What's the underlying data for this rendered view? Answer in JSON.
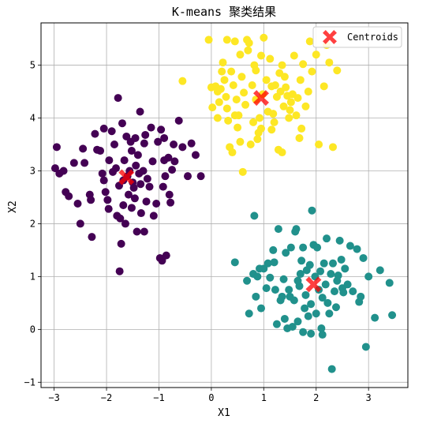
{
  "chart_data": {
    "type": "scatter",
    "title": "K-means 聚类结果",
    "xlabel": "X1",
    "ylabel": "X2",
    "xlim": [
      -3.25,
      3.75
    ],
    "ylim": [
      -1.1,
      5.8
    ],
    "xticks": [
      -3,
      -2,
      -1,
      0,
      1,
      2,
      3
    ],
    "yticks": [
      -1,
      0,
      1,
      2,
      3,
      4,
      5
    ],
    "grid": true,
    "legend": {
      "position": "top-right",
      "entries": [
        "Centroids"
      ]
    },
    "colors": {
      "cluster_0": "#440154",
      "cluster_1": "#21918c",
      "cluster_2": "#fde725",
      "centroid": "#ff0000"
    },
    "series": [
      {
        "cluster": 0,
        "color": "#440154",
        "points": [
          [
            -2.95,
            3.45
          ],
          [
            -2.98,
            3.05
          ],
          [
            -2.9,
            2.95
          ],
          [
            -2.82,
            3.0
          ],
          [
            -2.78,
            2.6
          ],
          [
            -2.72,
            2.52
          ],
          [
            -2.55,
            2.38
          ],
          [
            -2.5,
            2.0
          ],
          [
            -2.45,
            3.42
          ],
          [
            -2.42,
            3.15
          ],
          [
            -2.32,
            2.55
          ],
          [
            -2.3,
            2.45
          ],
          [
            -2.28,
            1.75
          ],
          [
            -2.22,
            3.7
          ],
          [
            -2.18,
            3.4
          ],
          [
            -2.12,
            3.38
          ],
          [
            -2.08,
            2.95
          ],
          [
            -2.05,
            2.82
          ],
          [
            -2.02,
            2.6
          ],
          [
            -1.98,
            2.45
          ],
          [
            -1.96,
            2.28
          ],
          [
            -1.9,
            3.75
          ],
          [
            -1.88,
            2.98
          ],
          [
            -1.85,
            3.5
          ],
          [
            -1.82,
            3.05
          ],
          [
            -1.8,
            2.15
          ],
          [
            -1.78,
            4.38
          ],
          [
            -1.76,
            2.72
          ],
          [
            -1.74,
            2.1
          ],
          [
            -1.72,
            1.62
          ],
          [
            -1.7,
            3.9
          ],
          [
            -1.68,
            2.35
          ],
          [
            -1.66,
            3.2
          ],
          [
            -1.64,
            2.0
          ],
          [
            -1.62,
            3.65
          ],
          [
            -1.6,
            2.9
          ],
          [
            -1.58,
            2.55
          ],
          [
            -1.56,
            3.0
          ],
          [
            -1.54,
            3.55
          ],
          [
            -1.52,
            3.38
          ],
          [
            -1.5,
            2.78
          ],
          [
            -1.48,
            2.68
          ],
          [
            -1.46,
            2.48
          ],
          [
            -1.44,
            3.1
          ],
          [
            -1.42,
            1.85
          ],
          [
            -1.4,
            3.3
          ],
          [
            -1.38,
            2.95
          ],
          [
            -1.36,
            4.12
          ],
          [
            -1.34,
            2.2
          ],
          [
            -1.3,
            3.0
          ],
          [
            -1.28,
            3.52
          ],
          [
            -1.26,
            3.68
          ],
          [
            -1.24,
            2.42
          ],
          [
            -1.22,
            2.85
          ],
          [
            -1.18,
            2.7
          ],
          [
            -1.15,
            3.82
          ],
          [
            -1.12,
            3.18
          ],
          [
            -1.1,
            2.15
          ],
          [
            -1.05,
            2.38
          ],
          [
            -1.02,
            3.55
          ],
          [
            -0.98,
            1.35
          ],
          [
            -0.96,
            3.78
          ],
          [
            -0.94,
            1.3
          ],
          [
            -0.92,
            2.7
          ],
          [
            -0.9,
            3.62
          ],
          [
            -0.88,
            2.9
          ],
          [
            -0.86,
            1.4
          ],
          [
            -0.82,
            3.25
          ],
          [
            -0.8,
            2.55
          ],
          [
            -0.78,
            2.4
          ],
          [
            -0.75,
            3.02
          ],
          [
            -0.72,
            3.5
          ],
          [
            -0.7,
            3.18
          ],
          [
            -0.62,
            3.95
          ],
          [
            -0.55,
            3.45
          ],
          [
            -0.45,
            2.9
          ],
          [
            -0.38,
            3.52
          ],
          [
            -0.3,
            3.3
          ],
          [
            -0.2,
            2.9
          ],
          [
            -1.75,
            1.1
          ],
          [
            -2.62,
            3.15
          ],
          [
            -2.05,
            3.8
          ],
          [
            -1.95,
            3.2
          ],
          [
            -1.52,
            2.3
          ],
          [
            -1.68,
            2.82
          ],
          [
            -1.35,
            2.75
          ],
          [
            -0.9,
            3.2
          ],
          [
            -1.45,
            3.62
          ],
          [
            -1.28,
            1.85
          ]
        ]
      },
      {
        "cluster": 1,
        "color": "#21918c",
        "points": [
          [
            0.45,
            1.27
          ],
          [
            0.68,
            0.92
          ],
          [
            0.72,
            0.3
          ],
          [
            0.8,
            1.05
          ],
          [
            0.82,
            2.15
          ],
          [
            0.85,
            0.62
          ],
          [
            0.88,
            1.0
          ],
          [
            0.92,
            1.15
          ],
          [
            0.95,
            0.4
          ],
          [
            1.0,
            1.15
          ],
          [
            1.05,
            0.78
          ],
          [
            1.08,
            1.25
          ],
          [
            1.12,
            0.98
          ],
          [
            1.18,
            1.5
          ],
          [
            1.22,
            0.75
          ],
          [
            1.25,
            0.1
          ],
          [
            1.28,
            1.9
          ],
          [
            1.32,
            0.55
          ],
          [
            1.35,
            0.62
          ],
          [
            1.38,
            0.95
          ],
          [
            1.4,
            0.2
          ],
          [
            1.42,
            1.45
          ],
          [
            1.45,
            0.02
          ],
          [
            1.48,
            0.75
          ],
          [
            1.5,
            0.62
          ],
          [
            1.52,
            1.55
          ],
          [
            1.55,
            0.05
          ],
          [
            1.58,
            0.55
          ],
          [
            1.6,
            1.85
          ],
          [
            1.62,
            1.9
          ],
          [
            1.65,
            0.15
          ],
          [
            1.68,
            0.82
          ],
          [
            1.7,
            1.05
          ],
          [
            1.72,
            1.3
          ],
          [
            1.75,
            1.55
          ],
          [
            1.78,
            0.4
          ],
          [
            1.8,
            0.65
          ],
          [
            1.82,
            1.12
          ],
          [
            1.85,
            0.25
          ],
          [
            1.88,
            1.22
          ],
          [
            1.9,
            0.48
          ],
          [
            1.92,
            2.25
          ],
          [
            1.95,
            1.6
          ],
          [
            1.98,
            1.0
          ],
          [
            2.0,
            0.3
          ],
          [
            2.02,
            1.55
          ],
          [
            2.05,
            0.75
          ],
          [
            2.08,
            1.1
          ],
          [
            2.1,
            0.02
          ],
          [
            2.12,
            0.6
          ],
          [
            2.15,
            1.25
          ],
          [
            2.18,
            0.85
          ],
          [
            2.2,
            1.72
          ],
          [
            2.22,
            0.5
          ],
          [
            2.25,
            0.3
          ],
          [
            2.28,
            1.05
          ],
          [
            2.3,
            -0.75
          ],
          [
            2.32,
            1.25
          ],
          [
            2.35,
            0.72
          ],
          [
            2.38,
            0.42
          ],
          [
            2.4,
            0.92
          ],
          [
            2.42,
            1.02
          ],
          [
            2.45,
            1.68
          ],
          [
            2.48,
            1.32
          ],
          [
            2.5,
            0.78
          ],
          [
            2.52,
            0.7
          ],
          [
            2.55,
            1.15
          ],
          [
            2.6,
            0.85
          ],
          [
            2.65,
            1.58
          ],
          [
            2.7,
            0.72
          ],
          [
            2.78,
            1.52
          ],
          [
            2.82,
            0.52
          ],
          [
            2.85,
            0.62
          ],
          [
            2.9,
            1.35
          ],
          [
            2.95,
            -0.33
          ],
          [
            3.0,
            1.0
          ],
          [
            3.12,
            0.22
          ],
          [
            3.22,
            1.12
          ],
          [
            3.4,
            0.88
          ],
          [
            3.45,
            0.27
          ],
          [
            1.2,
            1.27
          ],
          [
            1.75,
            -0.05
          ],
          [
            1.9,
            -0.08
          ],
          [
            2.12,
            -0.1
          ],
          [
            1.65,
            0.92
          ]
        ]
      },
      {
        "cluster": 2,
        "color": "#fde725",
        "points": [
          [
            -0.55,
            4.7
          ],
          [
            -0.05,
            5.48
          ],
          [
            0.0,
            4.58
          ],
          [
            0.02,
            4.2
          ],
          [
            0.08,
            4.6
          ],
          [
            0.12,
            4.0
          ],
          [
            0.18,
            4.55
          ],
          [
            0.2,
            4.88
          ],
          [
            0.22,
            5.05
          ],
          [
            0.25,
            4.72
          ],
          [
            0.28,
            4.4
          ],
          [
            0.3,
            4.18
          ],
          [
            0.32,
            3.95
          ],
          [
            0.35,
            3.45
          ],
          [
            0.38,
            4.88
          ],
          [
            0.4,
            3.35
          ],
          [
            0.42,
            4.62
          ],
          [
            0.45,
            5.45
          ],
          [
            0.48,
            4.35
          ],
          [
            0.5,
            3.82
          ],
          [
            0.52,
            4.05
          ],
          [
            0.55,
            3.55
          ],
          [
            0.58,
            4.78
          ],
          [
            0.6,
            2.98
          ],
          [
            0.62,
            4.48
          ],
          [
            0.65,
            4.25
          ],
          [
            0.68,
            5.48
          ],
          [
            0.7,
            5.28
          ],
          [
            0.72,
            5.42
          ],
          [
            0.75,
            3.5
          ],
          [
            0.78,
            4.62
          ],
          [
            0.8,
            3.92
          ],
          [
            0.82,
            5.0
          ],
          [
            0.85,
            4.35
          ],
          [
            0.88,
            3.6
          ],
          [
            0.9,
            3.72
          ],
          [
            0.92,
            4.0
          ],
          [
            0.95,
            5.18
          ],
          [
            0.98,
            4.45
          ],
          [
            1.0,
            5.52
          ],
          [
            1.05,
            4.72
          ],
          [
            1.08,
            4.12
          ],
          [
            1.12,
            5.12
          ],
          [
            1.15,
            3.78
          ],
          [
            1.18,
            4.08
          ],
          [
            1.2,
            3.92
          ],
          [
            1.22,
            4.62
          ],
          [
            1.25,
            4.4
          ],
          [
            1.28,
            3.4
          ],
          [
            1.3,
            4.85
          ],
          [
            1.32,
            4.5
          ],
          [
            1.35,
            3.35
          ],
          [
            1.38,
            4.22
          ],
          [
            1.4,
            4.78
          ],
          [
            1.42,
            4.58
          ],
          [
            1.45,
            4.42
          ],
          [
            1.48,
            4.0
          ],
          [
            1.5,
            4.15
          ],
          [
            1.52,
            4.3
          ],
          [
            1.55,
            4.45
          ],
          [
            1.58,
            5.18
          ],
          [
            1.62,
            4.05
          ],
          [
            1.65,
            4.38
          ],
          [
            1.68,
            3.62
          ],
          [
            1.7,
            4.72
          ],
          [
            1.72,
            3.8
          ],
          [
            1.75,
            5.02
          ],
          [
            1.8,
            4.22
          ],
          [
            1.85,
            4.5
          ],
          [
            1.88,
            5.45
          ],
          [
            1.92,
            4.88
          ],
          [
            2.0,
            5.2
          ],
          [
            2.05,
            3.5
          ],
          [
            2.15,
            4.6
          ],
          [
            2.2,
            5.38
          ],
          [
            2.25,
            5.05
          ],
          [
            2.32,
            3.45
          ],
          [
            2.4,
            4.9
          ],
          [
            0.15,
            4.3
          ],
          [
            0.55,
            5.2
          ],
          [
            0.85,
            4.9
          ],
          [
            1.15,
            4.6
          ],
          [
            0.95,
            3.8
          ],
          [
            0.3,
            5.48
          ],
          [
            0.12,
            4.5
          ],
          [
            1.35,
            5.0
          ],
          [
            0.45,
            4.05
          ]
        ]
      }
    ],
    "centroids": [
      [
        -1.62,
        2.88
      ],
      [
        1.95,
        0.85
      ],
      [
        0.95,
        4.38
      ]
    ]
  }
}
